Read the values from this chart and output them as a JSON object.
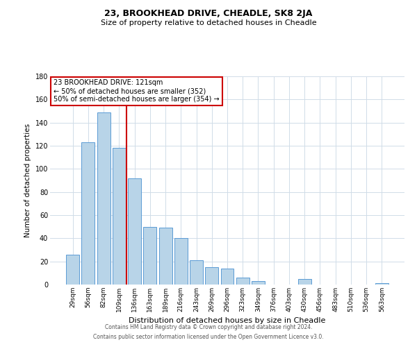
{
  "title": "23, BROOKHEAD DRIVE, CHEADLE, SK8 2JA",
  "subtitle": "Size of property relative to detached houses in Cheadle",
  "xlabel": "Distribution of detached houses by size in Cheadle",
  "ylabel": "Number of detached properties",
  "categories": [
    "29sqm",
    "56sqm",
    "82sqm",
    "109sqm",
    "136sqm",
    "163sqm",
    "189sqm",
    "216sqm",
    "243sqm",
    "269sqm",
    "296sqm",
    "323sqm",
    "349sqm",
    "376sqm",
    "403sqm",
    "430sqm",
    "456sqm",
    "483sqm",
    "510sqm",
    "536sqm",
    "563sqm"
  ],
  "values": [
    26,
    123,
    149,
    118,
    92,
    50,
    49,
    40,
    21,
    15,
    14,
    6,
    3,
    0,
    0,
    5,
    0,
    0,
    0,
    0,
    1
  ],
  "bar_color": "#b8d4e8",
  "bar_edge_color": "#5b9bd5",
  "vline_x": 3.5,
  "vline_color": "#cc0000",
  "annotation_line1": "23 BROOKHEAD DRIVE: 121sqm",
  "annotation_line2": "← 50% of detached houses are smaller (352)",
  "annotation_line3": "50% of semi-detached houses are larger (354) →",
  "annotation_box_edge": "#cc0000",
  "ylim": [
    0,
    180
  ],
  "yticks": [
    0,
    20,
    40,
    60,
    80,
    100,
    120,
    140,
    160,
    180
  ],
  "footer_line1": "Contains HM Land Registry data © Crown copyright and database right 2024.",
  "footer_line2": "Contains public sector information licensed under the Open Government Licence v3.0.",
  "bg_color": "#ffffff",
  "grid_color": "#d0dce8",
  "title_fontsize": 9,
  "subtitle_fontsize": 8,
  "xlabel_fontsize": 8,
  "ylabel_fontsize": 7.5,
  "xtick_fontsize": 6.5,
  "ytick_fontsize": 7,
  "annotation_fontsize": 7,
  "footer_fontsize": 5.5
}
